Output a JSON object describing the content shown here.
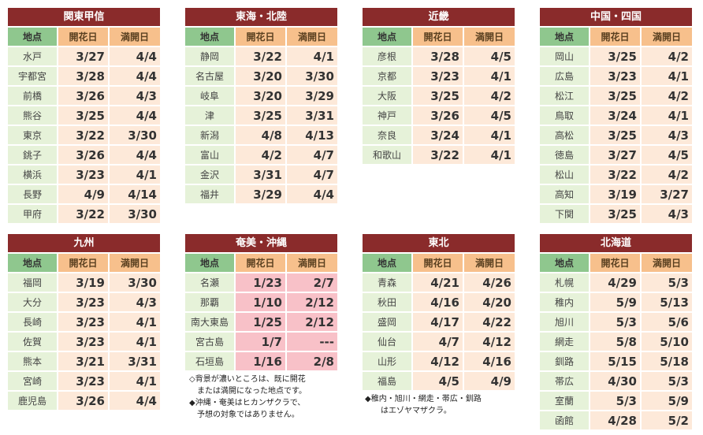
{
  "columns": {
    "place": "地点",
    "bloom": "開花日",
    "full": "満開日"
  },
  "panels": [
    {
      "title": "関東甲信",
      "rows": [
        {
          "place": "水戸",
          "bloom": "3/27",
          "full": "4/4"
        },
        {
          "place": "宇都宮",
          "bloom": "3/28",
          "full": "4/4"
        },
        {
          "place": "前橋",
          "bloom": "3/26",
          "full": "4/3"
        },
        {
          "place": "熊谷",
          "bloom": "3/25",
          "full": "4/4"
        },
        {
          "place": "東京",
          "bloom": "3/22",
          "full": "3/30"
        },
        {
          "place": "銚子",
          "bloom": "3/26",
          "full": "4/4"
        },
        {
          "place": "横浜",
          "bloom": "3/23",
          "full": "4/1"
        },
        {
          "place": "長野",
          "bloom": "4/9",
          "full": "4/14"
        },
        {
          "place": "甲府",
          "bloom": "3/22",
          "full": "3/30"
        }
      ]
    },
    {
      "title": "東海・北陸",
      "rows": [
        {
          "place": "静岡",
          "bloom": "3/22",
          "full": "4/1"
        },
        {
          "place": "名古屋",
          "bloom": "3/20",
          "full": "3/30"
        },
        {
          "place": "岐阜",
          "bloom": "3/20",
          "full": "3/29"
        },
        {
          "place": "津",
          "bloom": "3/25",
          "full": "3/31"
        },
        {
          "place": "新潟",
          "bloom": "4/8",
          "full": "4/13"
        },
        {
          "place": "富山",
          "bloom": "4/2",
          "full": "4/7"
        },
        {
          "place": "金沢",
          "bloom": "3/31",
          "full": "4/7"
        },
        {
          "place": "福井",
          "bloom": "3/29",
          "full": "4/4"
        }
      ]
    },
    {
      "title": "近畿",
      "rows": [
        {
          "place": "彦根",
          "bloom": "3/28",
          "full": "4/5"
        },
        {
          "place": "京都",
          "bloom": "3/23",
          "full": "4/1"
        },
        {
          "place": "大阪",
          "bloom": "3/25",
          "full": "4/2"
        },
        {
          "place": "神戸",
          "bloom": "3/26",
          "full": "4/5"
        },
        {
          "place": "奈良",
          "bloom": "3/24",
          "full": "4/1"
        },
        {
          "place": "和歌山",
          "bloom": "3/22",
          "full": "4/1"
        }
      ]
    },
    {
      "title": "中国・四国",
      "rows": [
        {
          "place": "岡山",
          "bloom": "3/25",
          "full": "4/2"
        },
        {
          "place": "広島",
          "bloom": "3/23",
          "full": "4/1"
        },
        {
          "place": "松江",
          "bloom": "3/25",
          "full": "4/2"
        },
        {
          "place": "鳥取",
          "bloom": "3/24",
          "full": "4/1"
        },
        {
          "place": "高松",
          "bloom": "3/25",
          "full": "4/3"
        },
        {
          "place": "徳島",
          "bloom": "3/27",
          "full": "4/5"
        },
        {
          "place": "松山",
          "bloom": "3/22",
          "full": "4/2"
        },
        {
          "place": "高知",
          "bloom": "3/19",
          "full": "3/27"
        },
        {
          "place": "下関",
          "bloom": "3/25",
          "full": "4/3"
        }
      ]
    },
    {
      "title": "九州",
      "rows": [
        {
          "place": "福岡",
          "bloom": "3/19",
          "full": "3/30"
        },
        {
          "place": "大分",
          "bloom": "3/23",
          "full": "4/3"
        },
        {
          "place": "長崎",
          "bloom": "3/23",
          "full": "4/1"
        },
        {
          "place": "佐賀",
          "bloom": "3/23",
          "full": "4/1"
        },
        {
          "place": "熊本",
          "bloom": "3/21",
          "full": "3/31"
        },
        {
          "place": "宮崎",
          "bloom": "3/23",
          "full": "4/1"
        },
        {
          "place": "鹿児島",
          "bloom": "3/26",
          "full": "4/4"
        }
      ]
    },
    {
      "title": "奄美・沖縄",
      "rows": [
        {
          "place": "名瀬",
          "bloom": "1/23",
          "full": "2/7",
          "bloomed": true
        },
        {
          "place": "那覇",
          "bloom": "1/10",
          "full": "2/12",
          "bloomed": true
        },
        {
          "place": "南大東島",
          "bloom": "1/25",
          "full": "2/12",
          "bloomed": true
        },
        {
          "place": "宮古島",
          "bloom": "1/7",
          "full": "---",
          "bloomed": true
        },
        {
          "place": "石垣島",
          "bloom": "1/16",
          "full": "2/8",
          "bloomed": true
        }
      ]
    },
    {
      "title": "東北",
      "rows": [
        {
          "place": "青森",
          "bloom": "4/21",
          "full": "4/26"
        },
        {
          "place": "秋田",
          "bloom": "4/16",
          "full": "4/20"
        },
        {
          "place": "盛岡",
          "bloom": "4/17",
          "full": "4/22"
        },
        {
          "place": "仙台",
          "bloom": "4/7",
          "full": "4/12"
        },
        {
          "place": "山形",
          "bloom": "4/12",
          "full": "4/16"
        },
        {
          "place": "福島",
          "bloom": "4/5",
          "full": "4/9"
        }
      ]
    },
    {
      "title": "北海道",
      "rows": [
        {
          "place": "札幌",
          "bloom": "4/29",
          "full": "5/3"
        },
        {
          "place": "稚内",
          "bloom": "5/9",
          "full": "5/13"
        },
        {
          "place": "旭川",
          "bloom": "5/3",
          "full": "5/6"
        },
        {
          "place": "網走",
          "bloom": "5/8",
          "full": "5/10"
        },
        {
          "place": "釧路",
          "bloom": "5/15",
          "full": "5/18"
        },
        {
          "place": "帯広",
          "bloom": "4/30",
          "full": "5/3"
        },
        {
          "place": "室蘭",
          "bloom": "5/3",
          "full": "5/9"
        },
        {
          "place": "函館",
          "bloom": "4/28",
          "full": "5/2"
        }
      ]
    }
  ],
  "notes": {
    "okinawa": "◇背景が濃いところは、既に開花\n　または満開になった地点です。\n◆沖縄・奄美はヒカンザクラで、\n　予想の対象ではありません。",
    "tohoku": "◆稚内・旭川・網走・帯広・釧路\n　　はエゾヤマザクラ。"
  },
  "colors": {
    "title_bg": "#8a2b2b",
    "place_header": "#8fc78e",
    "date_header": "#f7c08c",
    "place_cell": "#e6f2d9",
    "date_cell": "#fde9d9",
    "bloomed_cell": "#f8c1c8"
  }
}
